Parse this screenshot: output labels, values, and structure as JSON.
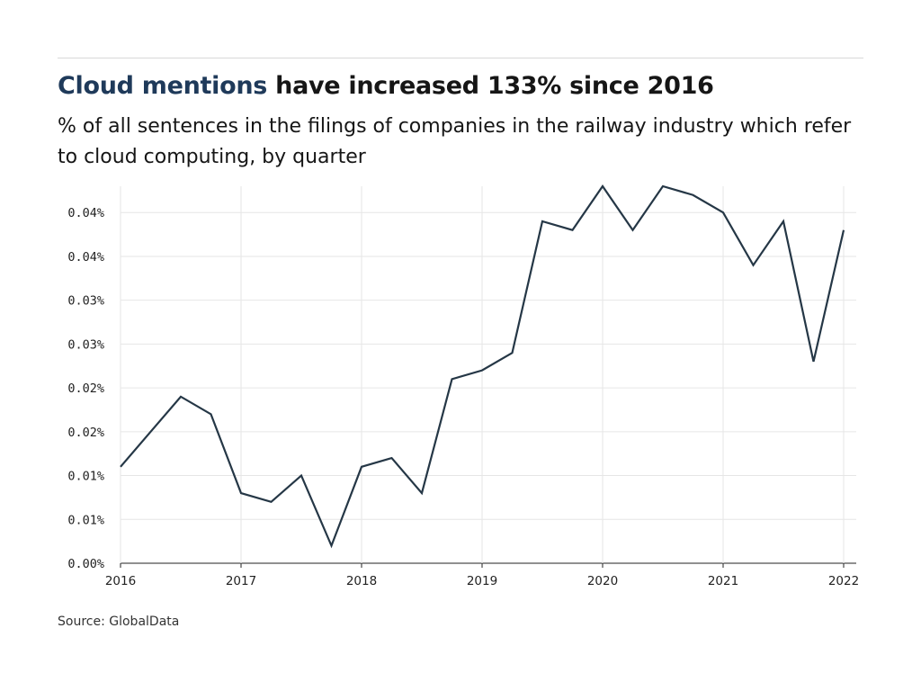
{
  "header": {
    "title_highlight": "Cloud mentions",
    "title_rest": " have increased 133% since 2016",
    "subtitle": "% of all sentences in the filings of companies in the railway industry which refer to cloud computing, by quarter"
  },
  "source": "Source: GlobalData",
  "colors": {
    "line": "#253746",
    "highlight": "#1f3a5a",
    "grid": "#e6e6e6"
  },
  "chart_data": {
    "type": "line",
    "title": "Cloud mentions have increased 133% since 2016",
    "subtitle": "% of all sentences in the filings of companies in the railway industry which refer to cloud computing, by quarter",
    "xlabel": "",
    "ylabel": "",
    "xlim": [
      2016,
      2022
    ],
    "ylim": [
      0,
      0.043
    ],
    "grid": true,
    "x_ticks": [
      {
        "value": 2016,
        "label": "2016"
      },
      {
        "value": 2017,
        "label": "2017"
      },
      {
        "value": 2018,
        "label": "2018"
      },
      {
        "value": 2019,
        "label": "2019"
      },
      {
        "value": 2020,
        "label": "2020"
      },
      {
        "value": 2021,
        "label": "2021"
      },
      {
        "value": 2022,
        "label": "2022"
      }
    ],
    "y_ticks": [
      {
        "value": 0,
        "label": "0.00%"
      },
      {
        "value": 0.005,
        "label": "0.01%"
      },
      {
        "value": 0.01,
        "label": "0.01%"
      },
      {
        "value": 0.015,
        "label": "0.02%"
      },
      {
        "value": 0.02,
        "label": "0.02%"
      },
      {
        "value": 0.025,
        "label": "0.03%"
      },
      {
        "value": 0.03,
        "label": "0.03%"
      },
      {
        "value": 0.035,
        "label": "0.04%"
      },
      {
        "value": 0.04,
        "label": "0.04%"
      }
    ],
    "series": [
      {
        "x": [
          2016.0,
          2016.25,
          2016.5,
          2016.75,
          2017.0,
          2017.25,
          2017.5,
          2017.75,
          2018.0,
          2018.25,
          2018.5,
          2018.75,
          2019.0,
          2019.25,
          2019.5,
          2019.75,
          2020.0,
          2020.25,
          2020.5,
          2020.75,
          2021.0,
          2021.25,
          2021.5,
          2021.75,
          2022.0
        ],
        "values": [
          0.011,
          0.015,
          0.019,
          0.017,
          0.008,
          0.007,
          0.01,
          0.002,
          0.011,
          0.012,
          0.008,
          0.021,
          0.022,
          0.024,
          0.039,
          0.038,
          0.043,
          0.038,
          0.043,
          0.042,
          0.04,
          0.034,
          0.039,
          0.023,
          0.038
        ]
      }
    ]
  }
}
